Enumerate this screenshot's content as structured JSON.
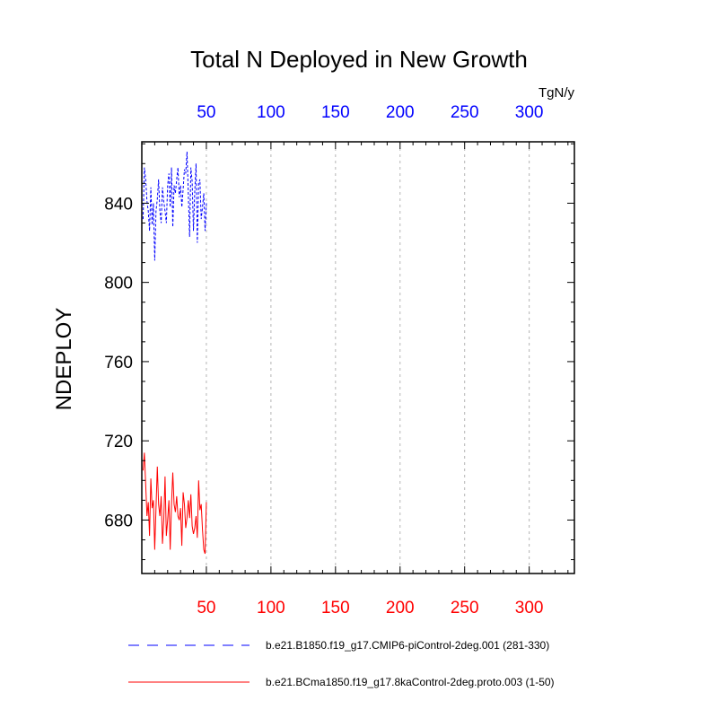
{
  "chart_data": {
    "type": "line",
    "title": "Total N Deployed in New Growth",
    "ylabel": "NDEPLOY",
    "units": "TgN/y",
    "xlim": [
      0,
      335
    ],
    "ylim": [
      653,
      871
    ],
    "x_ticks": [
      50,
      100,
      150,
      200,
      250,
      300
    ],
    "y_ticks": [
      680,
      720,
      760,
      800,
      840
    ],
    "grid": true,
    "colors": {
      "blue": "#0000ff",
      "red": "#ff0000",
      "grid": "#b4b4b4",
      "axis": "#000000"
    },
    "series": [
      {
        "name": "b.e21.B1850.f19_g17.CMIP6-piControl-2deg.001 (281-330)",
        "color": "#0000ff",
        "dash": "dashed",
        "axis": "top",
        "x": [
          1,
          2,
          3,
          4,
          5,
          6,
          7,
          8,
          9,
          10,
          11,
          12,
          13,
          14,
          15,
          16,
          17,
          18,
          19,
          20,
          21,
          22,
          23,
          24,
          25,
          26,
          27,
          28,
          29,
          30,
          31,
          32,
          33,
          34,
          35,
          36,
          37,
          38,
          39,
          40,
          41,
          42,
          43,
          44,
          45,
          46,
          47,
          48,
          49,
          50
        ],
        "values": [
          832,
          858,
          852,
          841,
          836,
          826,
          848,
          829,
          840,
          811,
          836,
          842,
          852,
          836,
          830,
          848,
          841,
          836,
          830,
          849,
          855,
          838,
          858,
          828,
          849,
          845,
          852,
          858,
          843,
          849,
          838,
          847,
          857,
          855,
          866,
          845,
          823,
          858,
          851,
          826,
          846,
          860,
          820,
          850,
          852,
          832,
          838,
          845,
          826,
          840
        ]
      },
      {
        "name": "b.e21.BCma1850.f19_g17.8kaControl-2deg.proto.003 (1-50)",
        "color": "#ff0000",
        "dash": "solid",
        "axis": "bottom",
        "x": [
          1,
          2,
          3,
          4,
          5,
          6,
          7,
          8,
          9,
          10,
          11,
          12,
          13,
          14,
          15,
          16,
          17,
          18,
          19,
          20,
          21,
          22,
          23,
          24,
          25,
          26,
          27,
          28,
          29,
          30,
          31,
          32,
          33,
          34,
          35,
          36,
          37,
          38,
          39,
          40,
          41,
          42,
          43,
          44,
          45,
          46,
          47,
          48,
          49,
          50
        ],
        "values": [
          705,
          714,
          698,
          682,
          689,
          672,
          701,
          686,
          690,
          665,
          686,
          707,
          688,
          682,
          692,
          668,
          680,
          702,
          672,
          680,
          690,
          665,
          688,
          704,
          688,
          684,
          692,
          682,
          680,
          686,
          667,
          694,
          688,
          676,
          681,
          690,
          681,
          693,
          677,
          673,
          676,
          682,
          671,
          700,
          685,
          688,
          675,
          665,
          663,
          689
        ]
      }
    ]
  }
}
